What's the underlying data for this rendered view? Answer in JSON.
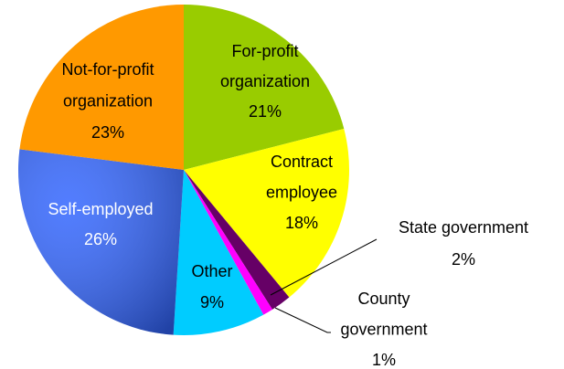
{
  "chart_data": {
    "type": "pie",
    "categories": [
      "For-profit organization",
      "Contract employee",
      "State government",
      "County government",
      "Other",
      "Self-employed",
      "Not-for-profit organization"
    ],
    "values": [
      21,
      18,
      2,
      1,
      9,
      26,
      23
    ],
    "value_labels": [
      "21%",
      "18%",
      "2%",
      "1%",
      "9%",
      "26%",
      "23%"
    ],
    "colors": [
      "#99cc00",
      "#ffff00",
      "#660066",
      "#ff00ff",
      "#00ccff",
      "#3366ff",
      "#ff9900"
    ]
  }
}
